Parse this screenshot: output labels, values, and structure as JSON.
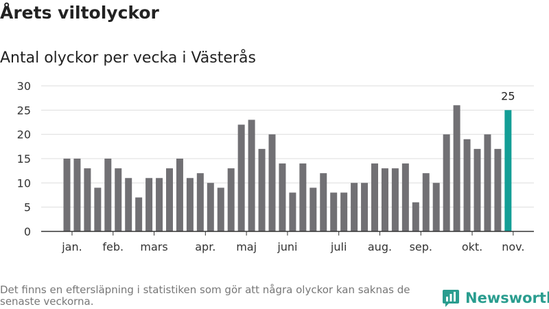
{
  "title": "Årets viltolyckor",
  "subtitle": "Antal olyckor per vecka i Västerås",
  "footnote": "Det finns en eftersläpning i statistiken som gör att några olyckor kan saknas de senaste veckorna.",
  "brand": "Newsworthy",
  "colors": {
    "bar": "#717074",
    "highlight": "#139e96",
    "grid": "#dddddd",
    "axis": "#333333",
    "brand": "#2a9d8f"
  },
  "chart_data": {
    "type": "bar",
    "x": [
      1,
      2,
      3,
      4,
      5,
      6,
      7,
      8,
      9,
      10,
      11,
      12,
      13,
      14,
      15,
      16,
      17,
      18,
      19,
      20,
      21,
      22,
      23,
      24,
      25,
      26,
      27,
      28,
      29,
      30,
      31,
      32,
      33,
      34,
      35,
      36,
      37,
      38,
      39,
      40,
      41,
      42,
      43,
      44,
      45
    ],
    "values": [
      15,
      15,
      13,
      9,
      15,
      13,
      11,
      7,
      11,
      11,
      13,
      15,
      11,
      12,
      10,
      9,
      13,
      22,
      23,
      17,
      20,
      14,
      8,
      14,
      9,
      12,
      8,
      8,
      10,
      10,
      14,
      13,
      13,
      14,
      6,
      12,
      10,
      20,
      26,
      19,
      17,
      20,
      17,
      25,
      0
    ],
    "highlight_index": 43,
    "data_label": "25",
    "ylim": [
      0,
      30
    ],
    "yticks": [
      0,
      5,
      10,
      15,
      20,
      25,
      30
    ],
    "month_ticks": [
      {
        "label": "jan.",
        "at": 1.5
      },
      {
        "label": "feb.",
        "at": 5.5
      },
      {
        "label": "mars",
        "at": 9.5
      },
      {
        "label": "apr.",
        "at": 14.5
      },
      {
        "label": "maj",
        "at": 18.5
      },
      {
        "label": "juni",
        "at": 22.5
      },
      {
        "label": "juli",
        "at": 27.5
      },
      {
        "label": "aug.",
        "at": 31.5
      },
      {
        "label": "sep.",
        "at": 35.5
      },
      {
        "label": "okt.",
        "at": 40.5
      },
      {
        "label": "nov.",
        "at": 44.5
      }
    ],
    "grid": true,
    "legend": "none"
  }
}
